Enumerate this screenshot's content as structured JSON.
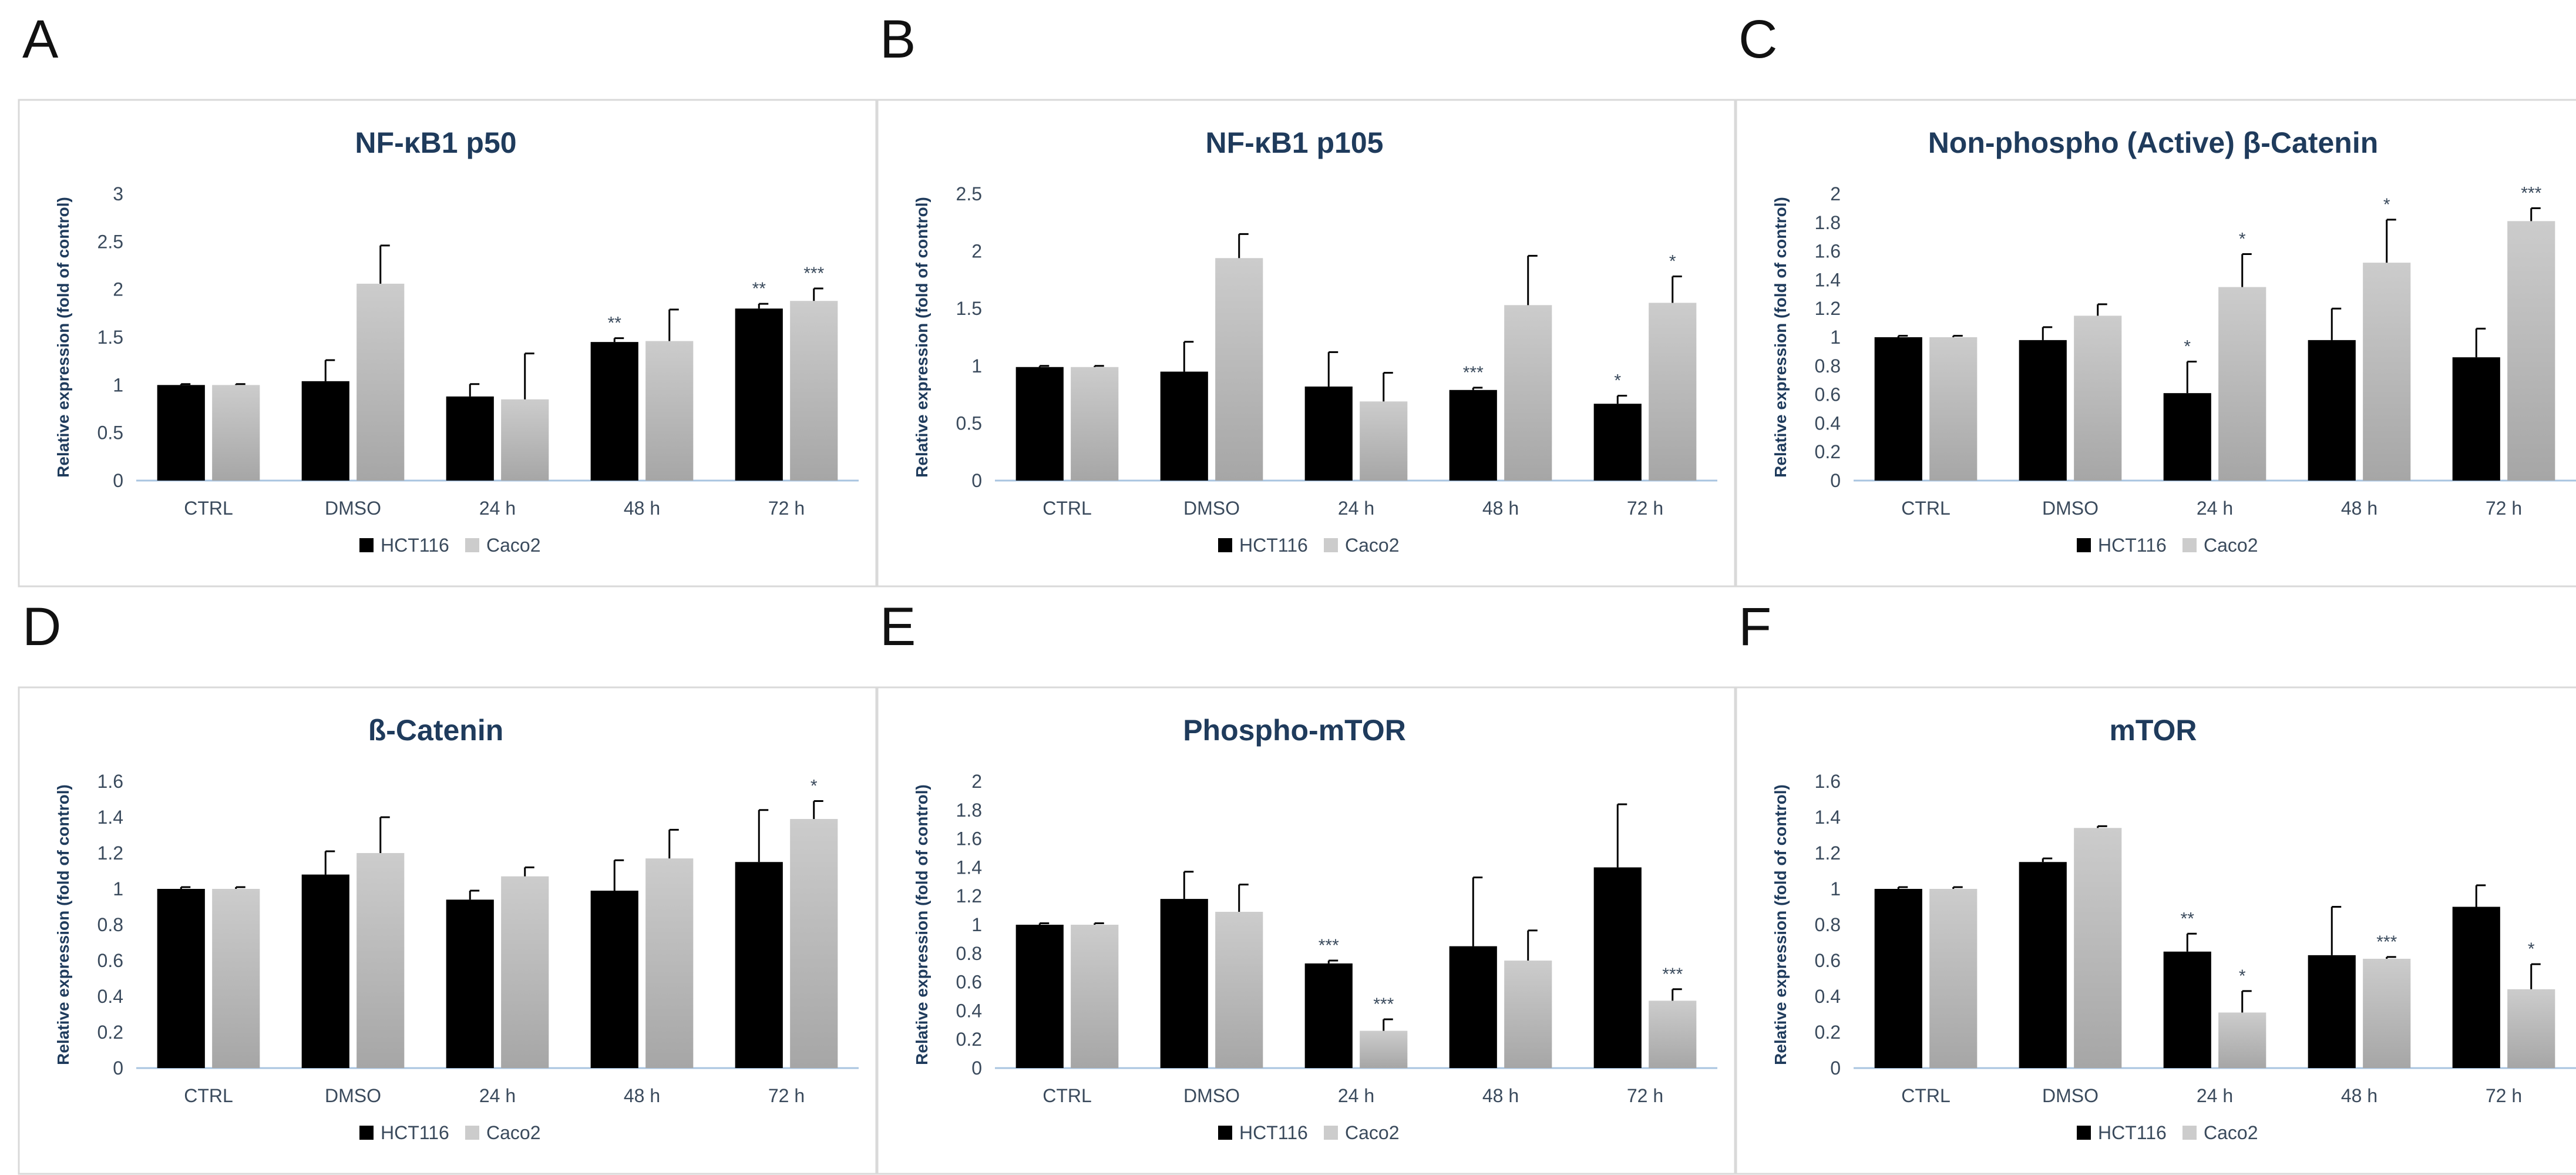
{
  "figure_letters": [
    "A",
    "B",
    "C",
    "D",
    "E",
    "F"
  ],
  "colors": {
    "hct116": "#000000",
    "caco2_top": "#cccccc",
    "caco2_bottom": "#a6a6a6",
    "axis": "#a9c4e0",
    "text": "#3a4a5c",
    "title": "#1f3b5c"
  },
  "chart_data": [
    {
      "panel": "A",
      "type": "bar",
      "title": "NF-κB1 p50",
      "ylabel": "Relative expression (fold of control)",
      "categories": [
        "CTRL",
        "DMSO",
        "24 h",
        "48 h",
        "72 h"
      ],
      "ylim": [
        0,
        3
      ],
      "ytick_step": 0.5,
      "yticks": [
        "0",
        "0.5",
        "1",
        "1.5",
        "2",
        "2.5",
        "3"
      ],
      "series": [
        {
          "name": "HCT116",
          "values": [
            1.0,
            1.04,
            0.88,
            1.45,
            1.8
          ],
          "errors": [
            0.01,
            0.22,
            0.13,
            0.04,
            0.05
          ],
          "sig": [
            "",
            "",
            "",
            "**",
            "**"
          ]
        },
        {
          "name": "Caco2",
          "values": [
            1.0,
            2.06,
            0.85,
            1.46,
            1.88
          ],
          "errors": [
            0.01,
            0.4,
            0.48,
            0.33,
            0.13
          ],
          "sig": [
            "",
            "",
            "",
            "",
            "***"
          ]
        }
      ]
    },
    {
      "panel": "B",
      "type": "bar",
      "title": "NF-κB1 p105",
      "ylabel": "Relative expression (fold of control)",
      "categories": [
        "CTRL",
        "DMSO",
        "24 h",
        "48 h",
        "72 h"
      ],
      "ylim": [
        0,
        2.5
      ],
      "ytick_step": 0.5,
      "yticks": [
        "0",
        "0.5",
        "1",
        "1.5",
        "2",
        "2.5"
      ],
      "series": [
        {
          "name": "HCT116",
          "values": [
            0.99,
            0.95,
            0.82,
            0.79,
            0.67
          ],
          "errors": [
            0.01,
            0.26,
            0.3,
            0.02,
            0.07
          ],
          "sig": [
            "",
            "",
            "",
            "***",
            "*"
          ]
        },
        {
          "name": "Caco2",
          "values": [
            0.99,
            1.94,
            0.69,
            1.53,
            1.55
          ],
          "errors": [
            0.01,
            0.21,
            0.25,
            0.43,
            0.23
          ],
          "sig": [
            "",
            "",
            "",
            "",
            "*"
          ]
        }
      ]
    },
    {
      "panel": "C",
      "type": "bar",
      "title": "Non-phospho (Active) β-Catenin",
      "ylabel": "Relative expression (fold of control)",
      "categories": [
        "CTRL",
        "DMSO",
        "24 h",
        "48 h",
        "72 h"
      ],
      "ylim": [
        0,
        2
      ],
      "ytick_step": 0.2,
      "yticks": [
        "0",
        "0.2",
        "0.4",
        "0.6",
        "0.8",
        "1",
        "1.2",
        "1.4",
        "1.6",
        "1.8",
        "2"
      ],
      "series": [
        {
          "name": "HCT116",
          "values": [
            1.0,
            0.98,
            0.61,
            0.98,
            0.86
          ],
          "errors": [
            0.01,
            0.09,
            0.22,
            0.22,
            0.2
          ],
          "sig": [
            "",
            "",
            "*",
            "",
            ""
          ]
        },
        {
          "name": "Caco2",
          "values": [
            1.0,
            1.15,
            1.35,
            1.52,
            1.81
          ],
          "errors": [
            0.01,
            0.08,
            0.23,
            0.3,
            0.09
          ],
          "sig": [
            "",
            "",
            "*",
            "*",
            "***"
          ]
        }
      ]
    },
    {
      "panel": "D",
      "type": "bar",
      "title": "ß-Catenin",
      "ylabel": "Relative expression (fold of control)",
      "categories": [
        "CTRL",
        "DMSO",
        "24 h",
        "48 h",
        "72 h"
      ],
      "ylim": [
        0,
        1.6
      ],
      "ytick_step": 0.2,
      "yticks": [
        "0",
        "0.2",
        "0.4",
        "0.6",
        "0.8",
        "1",
        "1.2",
        "1.4",
        "1.6"
      ],
      "series": [
        {
          "name": "HCT116",
          "values": [
            1.0,
            1.08,
            0.94,
            0.99,
            1.15
          ],
          "errors": [
            0.01,
            0.13,
            0.05,
            0.17,
            0.29
          ],
          "sig": [
            "",
            "",
            "",
            "",
            ""
          ]
        },
        {
          "name": "Caco2",
          "values": [
            1.0,
            1.2,
            1.07,
            1.17,
            1.39
          ],
          "errors": [
            0.01,
            0.2,
            0.05,
            0.16,
            0.1
          ],
          "sig": [
            "",
            "",
            "",
            "",
            "*"
          ]
        }
      ]
    },
    {
      "panel": "E",
      "type": "bar",
      "title": "Phospho-mTOR",
      "ylabel": "Relative expression (fold of control)",
      "categories": [
        "CTRL",
        "DMSO",
        "24 h",
        "48 h",
        "72 h"
      ],
      "ylim": [
        0,
        2
      ],
      "ytick_step": 0.2,
      "yticks": [
        "0",
        "0.2",
        "0.4",
        "0.6",
        "0.8",
        "1",
        "1.2",
        "1.4",
        "1.6",
        "1.8",
        "2"
      ],
      "series": [
        {
          "name": "HCT116",
          "values": [
            1.0,
            1.18,
            0.73,
            0.85,
            1.4
          ],
          "errors": [
            0.01,
            0.19,
            0.02,
            0.48,
            0.44
          ],
          "sig": [
            "",
            "",
            "***",
            "",
            ""
          ]
        },
        {
          "name": "Caco2",
          "values": [
            1.0,
            1.09,
            0.26,
            0.75,
            0.47
          ],
          "errors": [
            0.01,
            0.19,
            0.08,
            0.21,
            0.08
          ],
          "sig": [
            "",
            "",
            "***",
            "",
            "***"
          ]
        }
      ]
    },
    {
      "panel": "F",
      "type": "bar",
      "title": "mTOR",
      "ylabel": "Relative expression (fold of control)",
      "categories": [
        "CTRL",
        "DMSO",
        "24 h",
        "48 h",
        "72 h"
      ],
      "ylim": [
        0,
        1.6
      ],
      "ytick_step": 0.2,
      "yticks": [
        "0",
        "0.2",
        "0.4",
        "0.6",
        "0.8",
        "1",
        "1.2",
        "1.4",
        "1.6"
      ],
      "series": [
        {
          "name": "HCT116",
          "values": [
            1.0,
            1.15,
            0.65,
            0.63,
            0.9
          ],
          "errors": [
            0.01,
            0.02,
            0.1,
            0.27,
            0.12
          ],
          "sig": [
            "",
            "",
            "**",
            "",
            ""
          ]
        },
        {
          "name": "Caco2",
          "values": [
            1.0,
            1.34,
            0.31,
            0.61,
            0.44
          ],
          "errors": [
            0.01,
            0.01,
            0.12,
            0.01,
            0.14
          ],
          "sig": [
            "",
            "",
            "*",
            "***",
            "*"
          ]
        }
      ]
    }
  ]
}
